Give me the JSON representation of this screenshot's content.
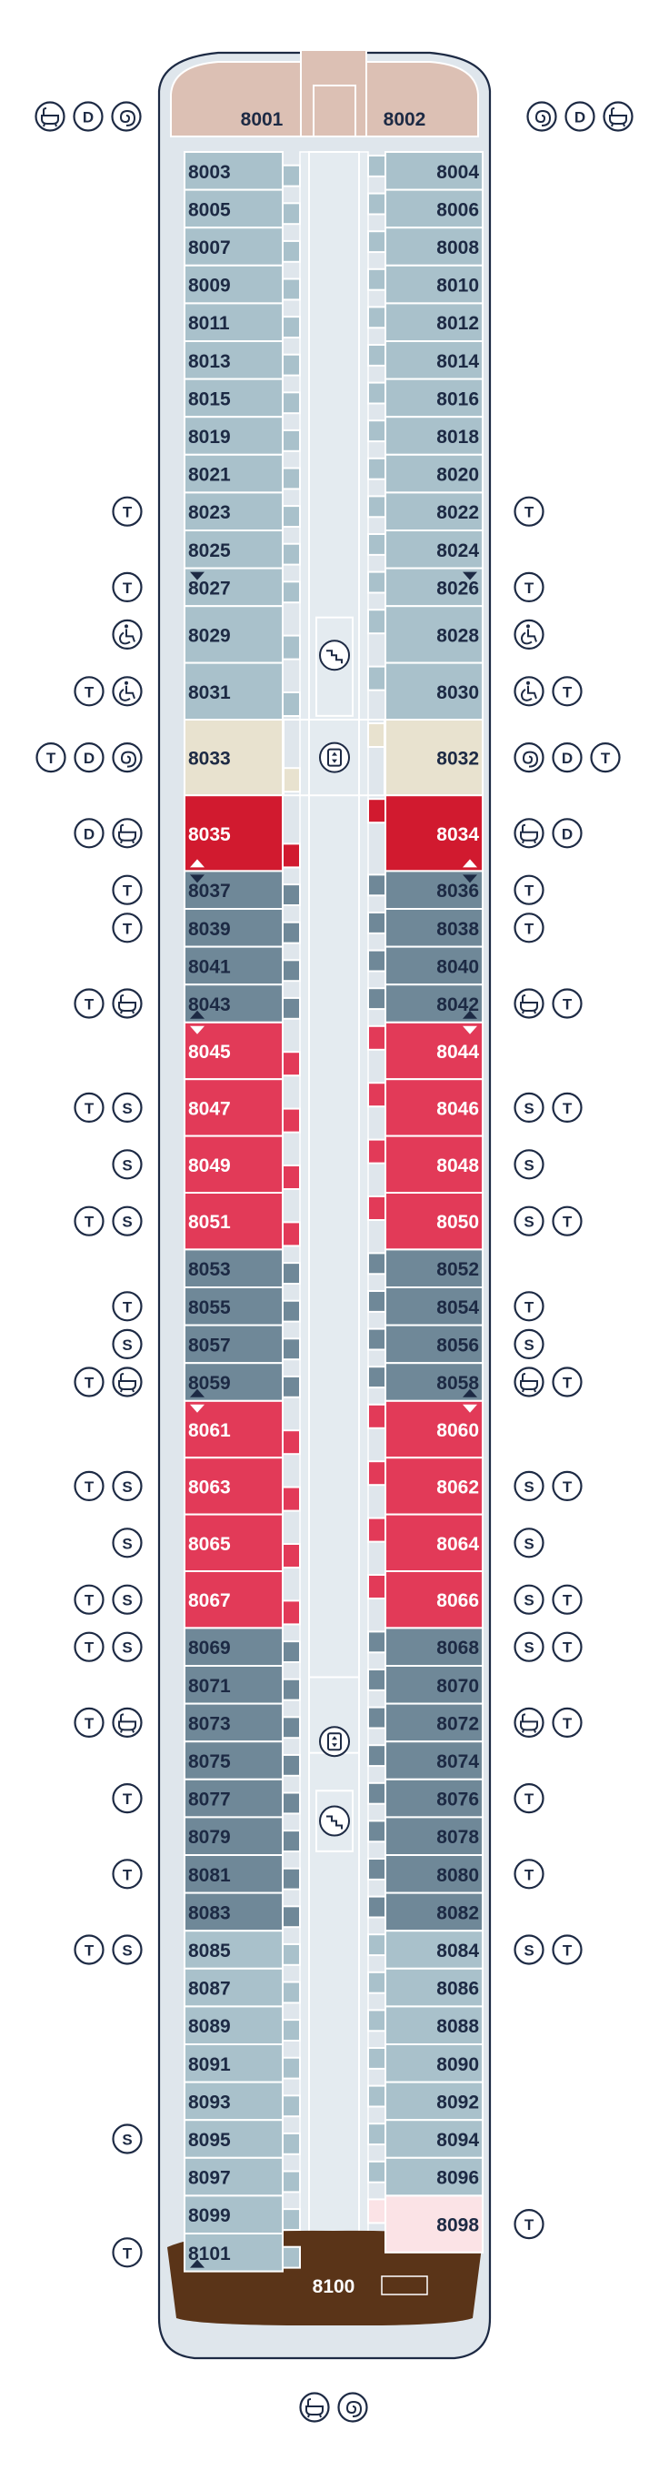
{
  "colors": {
    "hull": "#dfe6ec",
    "outline": "#1d2a44",
    "corridor": "#e4ebf0",
    "grid": "#ffffff",
    "cabin_light": "#a9c1cb",
    "cabin_dark": "#6f8898",
    "cabin_red": "#e23a58",
    "cabin_deepred": "#d11a2f",
    "cabin_beige": "#e8e2cf",
    "cabin_pink": "#fbe3e6",
    "bow_suite": "#dcc0b4",
    "stern_suite": "#5a3418"
  },
  "bow": {
    "port": "8001",
    "starboard": "8002",
    "port_icons": [
      "bath-icon",
      "d-icon",
      "spiral-icon"
    ],
    "starboard_icons": [
      "spiral-icon",
      "d-icon",
      "bath-icon"
    ]
  },
  "stern": {
    "label": "8100",
    "icons": [
      "bath-icon",
      "spiral-icon"
    ]
  },
  "port_cabins": [
    {
      "n": "8003",
      "c": "cabin_light",
      "a": 0,
      "b": 1
    },
    {
      "n": "8005",
      "c": "cabin_light",
      "a": 1,
      "b": 2
    },
    {
      "n": "8007",
      "c": "cabin_light",
      "a": 2,
      "b": 3
    },
    {
      "n": "8009",
      "c": "cabin_light",
      "a": 3,
      "b": 4
    },
    {
      "n": "8011",
      "c": "cabin_light",
      "a": 4,
      "b": 5
    },
    {
      "n": "8013",
      "c": "cabin_light",
      "a": 5,
      "b": 6
    },
    {
      "n": "8015",
      "c": "cabin_light",
      "a": 6,
      "b": 7
    },
    {
      "n": "8019",
      "c": "cabin_light",
      "a": 7,
      "b": 8
    },
    {
      "n": "8021",
      "c": "cabin_light",
      "a": 8,
      "b": 9
    },
    {
      "n": "8023",
      "c": "cabin_light",
      "a": 9,
      "b": 10,
      "icons": [
        "t"
      ]
    },
    {
      "n": "8025",
      "c": "cabin_light",
      "a": 10,
      "b": 11
    },
    {
      "n": "8027",
      "c": "cabin_light",
      "a": 11,
      "b": 12,
      "icons": [
        "t"
      ],
      "tri": "down"
    },
    {
      "n": "8029",
      "c": "cabin_light",
      "a": 12,
      "b": 13.5,
      "icons": [
        "wheelchair"
      ]
    },
    {
      "n": "8031",
      "c": "cabin_light",
      "a": 13.5,
      "b": 15,
      "icons": [
        "t",
        "wheelchair"
      ]
    },
    {
      "n": "8033",
      "c": "cabin_beige",
      "a": 15,
      "b": 17,
      "icons": [
        "t",
        "d",
        "spiral"
      ]
    },
    {
      "n": "8035",
      "c": "cabin_deepred",
      "a": 17,
      "b": 19,
      "icons": [
        "d",
        "bath"
      ],
      "tri": "up"
    },
    {
      "n": "8037",
      "c": "cabin_dark",
      "a": 19,
      "b": 20,
      "icons": [
        "t"
      ],
      "tri": "down"
    },
    {
      "n": "8039",
      "c": "cabin_dark",
      "a": 20,
      "b": 21,
      "icons": [
        "t"
      ]
    },
    {
      "n": "8041",
      "c": "cabin_dark",
      "a": 21,
      "b": 22
    },
    {
      "n": "8043",
      "c": "cabin_dark",
      "a": 22,
      "b": 23,
      "icons": [
        "t",
        "bath"
      ],
      "tri": "up"
    },
    {
      "n": "8045",
      "c": "cabin_red",
      "a": 23,
      "b": 24.5,
      "tri": "down"
    },
    {
      "n": "8047",
      "c": "cabin_red",
      "a": 24.5,
      "b": 26,
      "icons": [
        "t",
        "s"
      ]
    },
    {
      "n": "8049",
      "c": "cabin_red",
      "a": 26,
      "b": 27.5,
      "icons": [
        "s"
      ]
    },
    {
      "n": "8051",
      "c": "cabin_red",
      "a": 27.5,
      "b": 29,
      "icons": [
        "t",
        "s"
      ]
    },
    {
      "n": "8053",
      "c": "cabin_dark",
      "a": 29,
      "b": 30
    },
    {
      "n": "8055",
      "c": "cabin_dark",
      "a": 30,
      "b": 31,
      "icons": [
        "t"
      ]
    },
    {
      "n": "8057",
      "c": "cabin_dark",
      "a": 31,
      "b": 32,
      "icons": [
        "s"
      ]
    },
    {
      "n": "8059",
      "c": "cabin_dark",
      "a": 32,
      "b": 33,
      "icons": [
        "t",
        "bath"
      ],
      "tri": "up"
    },
    {
      "n": "8061",
      "c": "cabin_red",
      "a": 33,
      "b": 34.5,
      "tri": "down"
    },
    {
      "n": "8063",
      "c": "cabin_red",
      "a": 34.5,
      "b": 36,
      "icons": [
        "t",
        "s"
      ]
    },
    {
      "n": "8065",
      "c": "cabin_red",
      "a": 36,
      "b": 37.5,
      "icons": [
        "s"
      ]
    },
    {
      "n": "8067",
      "c": "cabin_red",
      "a": 37.5,
      "b": 39,
      "icons": [
        "t",
        "s"
      ]
    },
    {
      "n": "8069",
      "c": "cabin_dark",
      "a": 39,
      "b": 40,
      "icons": [
        "t",
        "s"
      ]
    },
    {
      "n": "8071",
      "c": "cabin_dark",
      "a": 40,
      "b": 41
    },
    {
      "n": "8073",
      "c": "cabin_dark",
      "a": 41,
      "b": 42,
      "icons": [
        "t",
        "bath"
      ]
    },
    {
      "n": "8075",
      "c": "cabin_dark",
      "a": 42,
      "b": 43
    },
    {
      "n": "8077",
      "c": "cabin_dark",
      "a": 43,
      "b": 44,
      "icons": [
        "t"
      ]
    },
    {
      "n": "8079",
      "c": "cabin_dark",
      "a": 44,
      "b": 45
    },
    {
      "n": "8081",
      "c": "cabin_dark",
      "a": 45,
      "b": 46,
      "icons": [
        "t"
      ]
    },
    {
      "n": "8083",
      "c": "cabin_dark",
      "a": 46,
      "b": 47
    },
    {
      "n": "8085",
      "c": "cabin_light",
      "a": 47,
      "b": 48,
      "icons": [
        "t",
        "s"
      ]
    },
    {
      "n": "8087",
      "c": "cabin_light",
      "a": 48,
      "b": 49
    },
    {
      "n": "8089",
      "c": "cabin_light",
      "a": 49,
      "b": 50
    },
    {
      "n": "8091",
      "c": "cabin_light",
      "a": 50,
      "b": 51
    },
    {
      "n": "8093",
      "c": "cabin_light",
      "a": 51,
      "b": 52
    },
    {
      "n": "8095",
      "c": "cabin_light",
      "a": 52,
      "b": 53,
      "icons": [
        "s"
      ]
    },
    {
      "n": "8097",
      "c": "cabin_light",
      "a": 53,
      "b": 54
    },
    {
      "n": "8099",
      "c": "cabin_light",
      "a": 54,
      "b": 55
    },
    {
      "n": "8101",
      "c": "cabin_light",
      "a": 55,
      "b": 56,
      "icons": [
        "t"
      ],
      "tri": "up"
    }
  ],
  "starboard_cabins": [
    {
      "n": "8004",
      "c": "cabin_light",
      "a": 0,
      "b": 1
    },
    {
      "n": "8006",
      "c": "cabin_light",
      "a": 1,
      "b": 2
    },
    {
      "n": "8008",
      "c": "cabin_light",
      "a": 2,
      "b": 3
    },
    {
      "n": "8010",
      "c": "cabin_light",
      "a": 3,
      "b": 4
    },
    {
      "n": "8012",
      "c": "cabin_light",
      "a": 4,
      "b": 5
    },
    {
      "n": "8014",
      "c": "cabin_light",
      "a": 5,
      "b": 6
    },
    {
      "n": "8016",
      "c": "cabin_light",
      "a": 6,
      "b": 7
    },
    {
      "n": "8018",
      "c": "cabin_light",
      "a": 7,
      "b": 8
    },
    {
      "n": "8020",
      "c": "cabin_light",
      "a": 8,
      "b": 9
    },
    {
      "n": "8022",
      "c": "cabin_light",
      "a": 9,
      "b": 10,
      "icons": [
        "t"
      ]
    },
    {
      "n": "8024",
      "c": "cabin_light",
      "a": 10,
      "b": 11
    },
    {
      "n": "8026",
      "c": "cabin_light",
      "a": 11,
      "b": 12,
      "icons": [
        "t"
      ],
      "tri": "down"
    },
    {
      "n": "8028",
      "c": "cabin_light",
      "a": 12,
      "b": 13.5,
      "icons": [
        "wheelchair"
      ]
    },
    {
      "n": "8030",
      "c": "cabin_light",
      "a": 13.5,
      "b": 15,
      "icons": [
        "wheelchair",
        "t"
      ]
    },
    {
      "n": "8032",
      "c": "cabin_beige",
      "a": 15,
      "b": 17,
      "icons": [
        "spiral",
        "d",
        "t"
      ]
    },
    {
      "n": "8034",
      "c": "cabin_deepred",
      "a": 17,
      "b": 19,
      "icons": [
        "bath",
        "d"
      ],
      "tri": "up"
    },
    {
      "n": "8036",
      "c": "cabin_dark",
      "a": 19,
      "b": 20,
      "icons": [
        "t"
      ],
      "tri": "down"
    },
    {
      "n": "8038",
      "c": "cabin_dark",
      "a": 20,
      "b": 21,
      "icons": [
        "t"
      ]
    },
    {
      "n": "8040",
      "c": "cabin_dark",
      "a": 21,
      "b": 22
    },
    {
      "n": "8042",
      "c": "cabin_dark",
      "a": 22,
      "b": 23,
      "icons": [
        "bath",
        "t"
      ],
      "tri": "up"
    },
    {
      "n": "8044",
      "c": "cabin_red",
      "a": 23,
      "b": 24.5,
      "tri": "down"
    },
    {
      "n": "8046",
      "c": "cabin_red",
      "a": 24.5,
      "b": 26,
      "icons": [
        "s",
        "t"
      ]
    },
    {
      "n": "8048",
      "c": "cabin_red",
      "a": 26,
      "b": 27.5,
      "icons": [
        "s"
      ]
    },
    {
      "n": "8050",
      "c": "cabin_red",
      "a": 27.5,
      "b": 29,
      "icons": [
        "s",
        "t"
      ]
    },
    {
      "n": "8052",
      "c": "cabin_dark",
      "a": 29,
      "b": 30
    },
    {
      "n": "8054",
      "c": "cabin_dark",
      "a": 30,
      "b": 31,
      "icons": [
        "t"
      ]
    },
    {
      "n": "8056",
      "c": "cabin_dark",
      "a": 31,
      "b": 32,
      "icons": [
        "s"
      ]
    },
    {
      "n": "8058",
      "c": "cabin_dark",
      "a": 32,
      "b": 33,
      "icons": [
        "bath",
        "t"
      ],
      "tri": "up"
    },
    {
      "n": "8060",
      "c": "cabin_red",
      "a": 33,
      "b": 34.5,
      "tri": "down"
    },
    {
      "n": "8062",
      "c": "cabin_red",
      "a": 34.5,
      "b": 36,
      "icons": [
        "s",
        "t"
      ]
    },
    {
      "n": "8064",
      "c": "cabin_red",
      "a": 36,
      "b": 37.5,
      "icons": [
        "s"
      ]
    },
    {
      "n": "8066",
      "c": "cabin_red",
      "a": 37.5,
      "b": 39,
      "icons": [
        "s",
        "t"
      ]
    },
    {
      "n": "8068",
      "c": "cabin_dark",
      "a": 39,
      "b": 40,
      "icons": [
        "s",
        "t"
      ]
    },
    {
      "n": "8070",
      "c": "cabin_dark",
      "a": 40,
      "b": 41
    },
    {
      "n": "8072",
      "c": "cabin_dark",
      "a": 41,
      "b": 42,
      "icons": [
        "bath",
        "t"
      ]
    },
    {
      "n": "8074",
      "c": "cabin_dark",
      "a": 42,
      "b": 43
    },
    {
      "n": "8076",
      "c": "cabin_dark",
      "a": 43,
      "b": 44,
      "icons": [
        "t"
      ]
    },
    {
      "n": "8078",
      "c": "cabin_dark",
      "a": 44,
      "b": 45
    },
    {
      "n": "8080",
      "c": "cabin_dark",
      "a": 45,
      "b": 46,
      "icons": [
        "t"
      ]
    },
    {
      "n": "8082",
      "c": "cabin_dark",
      "a": 46,
      "b": 47
    },
    {
      "n": "8084",
      "c": "cabin_light",
      "a": 47,
      "b": 48,
      "icons": [
        "s",
        "t"
      ]
    },
    {
      "n": "8086",
      "c": "cabin_light",
      "a": 48,
      "b": 49
    },
    {
      "n": "8088",
      "c": "cabin_light",
      "a": 49,
      "b": 50
    },
    {
      "n": "8090",
      "c": "cabin_light",
      "a": 50,
      "b": 51
    },
    {
      "n": "8092",
      "c": "cabin_light",
      "a": 51,
      "b": 52
    },
    {
      "n": "8094",
      "c": "cabin_light",
      "a": 52,
      "b": 53
    },
    {
      "n": "8096",
      "c": "cabin_light",
      "a": 53,
      "b": 54
    },
    {
      "n": "8098",
      "c": "cabin_pink",
      "a": 54,
      "b": 55.5,
      "icons": [
        "t"
      ]
    }
  ],
  "amenities": [
    {
      "icon": "stairs-icon",
      "pos": "forward"
    },
    {
      "icon": "elevator-icon",
      "pos": "forward"
    },
    {
      "icon": "elevator-icon",
      "pos": "aft"
    },
    {
      "icon": "stairs-icon",
      "pos": "aft"
    }
  ]
}
